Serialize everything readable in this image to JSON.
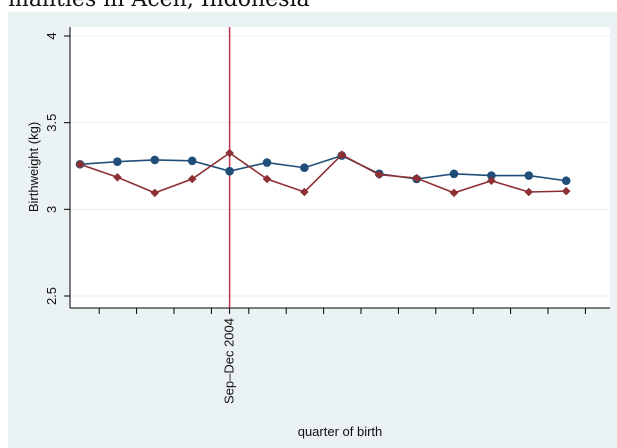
{
  "caption": "malities in Aceh, Indonesia",
  "chart_data": {
    "type": "line",
    "title": "",
    "xlabel": "quarter of birth",
    "ylabel": "Birthweight (kg)",
    "ylim": [
      2.5,
      4
    ],
    "yticks": [
      2.5,
      3,
      3.5,
      4
    ],
    "ytick_labels": [
      "2.5",
      "3",
      "3.5",
      "4"
    ],
    "x_marked_tick": {
      "index": 4,
      "label": "Sep–Dec 2004"
    },
    "vline_index": 4,
    "grid": true,
    "legend": "none",
    "series": [
      {
        "color": "#1f4e79",
        "marker": "circle",
        "values": [
          3.26,
          3.275,
          3.285,
          3.28,
          3.22,
          3.27,
          3.24,
          3.31,
          3.205,
          3.175,
          3.205,
          3.195,
          3.195,
          3.165
        ]
      },
      {
        "color": "#8e3033",
        "marker": "diamond",
        "values": [
          3.26,
          3.185,
          3.095,
          3.175,
          3.325,
          3.175,
          3.1,
          3.315,
          3.2,
          3.18,
          3.095,
          3.165,
          3.1,
          3.105
        ]
      }
    ],
    "vline_color": "#c2334d"
  }
}
